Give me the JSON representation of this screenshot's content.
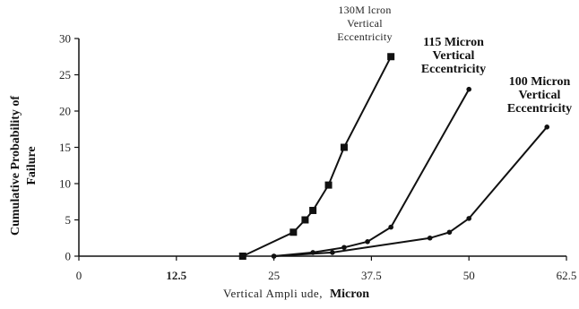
{
  "chart_data": {
    "type": "line",
    "xlabel_plain": "Vertical Ampli ude,",
    "xlabel_bold": "Micron",
    "ylabel_lines": [
      "Cumulative Probability of",
      "Failure"
    ],
    "x_ticks": [
      "0",
      "12.5",
      "25",
      "37.5",
      "50",
      "62.5"
    ],
    "x_tick_values": [
      0,
      12.5,
      25,
      37.5,
      50,
      62.5
    ],
    "x_tick_bold": [
      false,
      true,
      false,
      false,
      false,
      false
    ],
    "y_ticks": [
      "0",
      "5",
      "10",
      "15",
      "20",
      "25",
      "30"
    ],
    "y_tick_values": [
      0,
      5,
      10,
      15,
      20,
      25,
      30
    ],
    "xlim": [
      0,
      62.5
    ],
    "ylim": [
      0,
      30
    ],
    "grid": false,
    "series": [
      {
        "name": "130 Micron Vertical Eccentricity",
        "label_lines": [
          "130M lcron",
          "Vertical",
          "Eccentricity"
        ],
        "label_style": "small",
        "marker": "square",
        "x": [
          21,
          27.5,
          29,
          30,
          32,
          34,
          40
        ],
        "y": [
          0,
          3.3,
          5,
          6.3,
          9.8,
          15,
          27.5
        ]
      },
      {
        "name": "115 Micron Vertical Eccentricity",
        "label_lines": [
          "115 Micron",
          "Vertical",
          "Eccentricity"
        ],
        "label_style": "bold",
        "marker": "dot",
        "x": [
          25,
          30,
          34,
          37,
          40,
          50
        ],
        "y": [
          0,
          0.5,
          1.2,
          2,
          4,
          23
        ]
      },
      {
        "name": "100 Micron Vertical Eccentricity",
        "label_lines": [
          "100 Micron",
          "Vertical",
          "Eccentricity"
        ],
        "label_style": "bold",
        "marker": "dot",
        "x": [
          25,
          32.5,
          45,
          47.5,
          50,
          60
        ],
        "y": [
          0,
          0.5,
          2.5,
          3.3,
          5.2,
          17.8
        ]
      }
    ]
  }
}
